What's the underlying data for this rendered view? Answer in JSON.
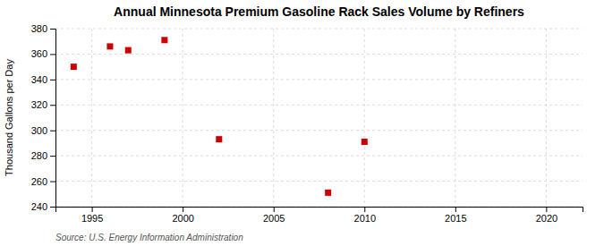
{
  "chart_data": {
    "type": "scatter",
    "title": "Annual Minnesota Premium Gasoline Rack Sales Volume by Refiners",
    "ylabel": "Thousand Gallons per Day",
    "annotations": [
      "Source: U.S. Energy Information Administration"
    ],
    "x": [
      1994,
      1996,
      1997,
      1999,
      2002,
      2008,
      2010
    ],
    "values": [
      350,
      366,
      363,
      371,
      293,
      251,
      291
    ],
    "color": "#cc0000",
    "marker": "square",
    "xlim": [
      1993,
      2022
    ],
    "ylim": [
      240,
      380
    ],
    "xticks": [
      1995,
      2000,
      2005,
      2010,
      2015,
      2020
    ],
    "yticks": [
      240,
      260,
      280,
      300,
      320,
      340,
      360,
      380
    ],
    "grid": true
  }
}
